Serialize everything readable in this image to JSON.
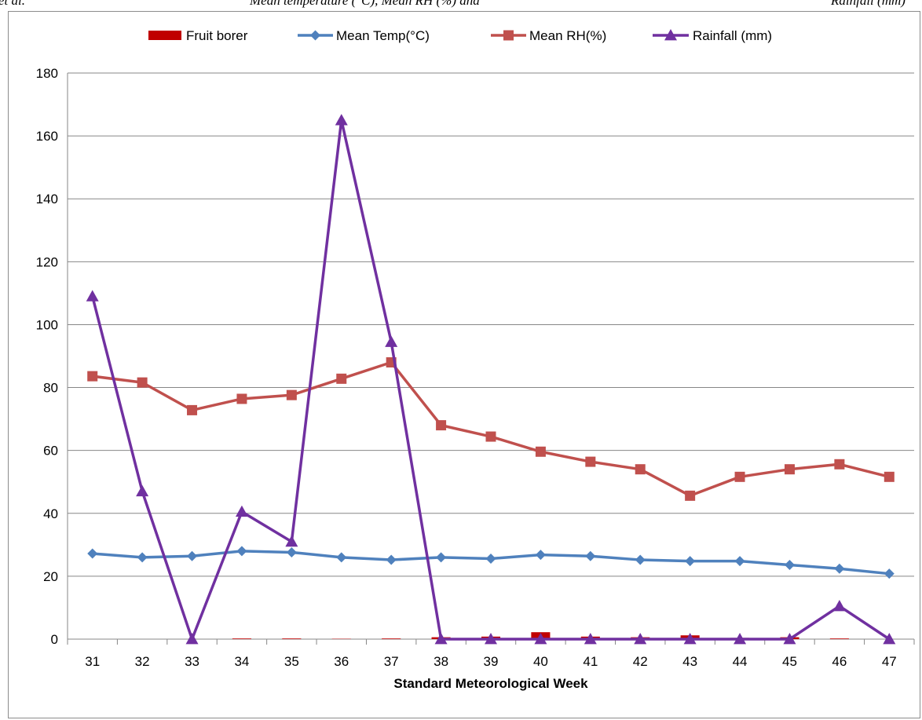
{
  "header_fragments": {
    "left": "et al.",
    "middle": "Mean temperature (°C), Mean RH (%) and",
    "right": "Rainfall (mm)"
  },
  "chart_data": {
    "type": "line",
    "title": "",
    "xlabel": "Standard Meteorological Week",
    "ylabel": "",
    "categories": [
      "31",
      "32",
      "33",
      "34",
      "35",
      "36",
      "37",
      "38",
      "39",
      "40",
      "41",
      "42",
      "43",
      "44",
      "45",
      "46",
      "47"
    ],
    "ylim": [
      0,
      180
    ],
    "yticks": [
      0,
      20,
      40,
      60,
      80,
      100,
      120,
      140,
      160,
      180
    ],
    "grid": true,
    "legend_position": "top",
    "series": [
      {
        "name": "Fruit borer",
        "kind": "bar",
        "color": "#c00000",
        "values": [
          0,
          0,
          0,
          0.2,
          0.2,
          0.1,
          0.2,
          0.6,
          0.8,
          2.2,
          0.8,
          0.6,
          1.2,
          0.4,
          0.6,
          0.2,
          0
        ]
      },
      {
        "name": "Mean Temp(°C)",
        "kind": "line",
        "marker": "diamond",
        "color": "#4f81bd",
        "values": [
          27.2,
          26.0,
          26.4,
          28.0,
          27.6,
          26.0,
          25.2,
          26.0,
          25.6,
          26.8,
          26.4,
          25.2,
          24.8,
          24.8,
          23.6,
          22.4,
          20.8
        ]
      },
      {
        "name": "Mean RH(%)",
        "kind": "line",
        "marker": "square",
        "color": "#c0504d",
        "values": [
          83.6,
          81.6,
          72.8,
          76.4,
          77.6,
          82.8,
          88.0,
          68.0,
          64.4,
          59.6,
          56.4,
          54.0,
          45.6,
          51.6,
          54.0,
          55.6,
          51.6
        ]
      },
      {
        "name": "Rainfall (mm)",
        "kind": "line",
        "marker": "triangle",
        "color": "#7030a0",
        "values": [
          109.0,
          47.0,
          0.0,
          40.5,
          31.0,
          165.0,
          94.5,
          0.0,
          0.0,
          0.0,
          0.0,
          0.0,
          0.0,
          0.0,
          0.0,
          10.5,
          0.0
        ]
      }
    ]
  }
}
